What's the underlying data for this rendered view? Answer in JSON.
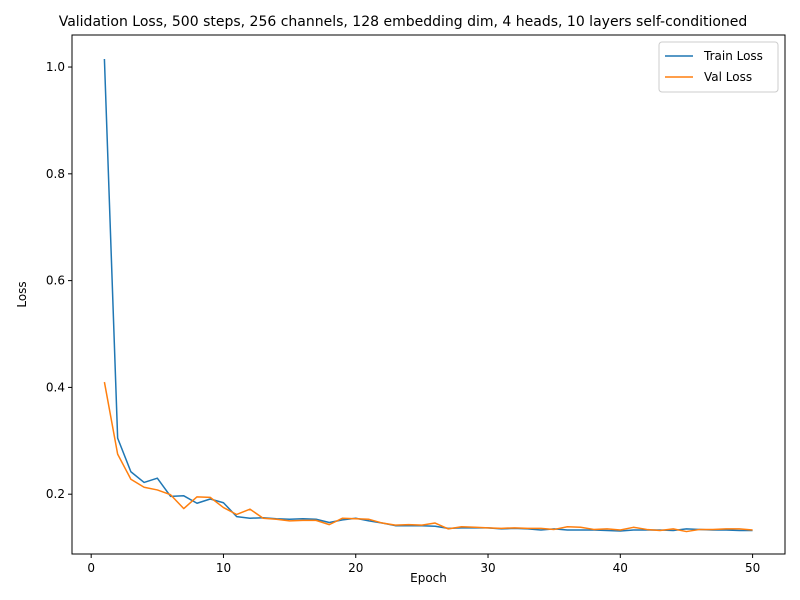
{
  "chart_data": {
    "type": "line",
    "title": "Validation Loss, 500 steps, 256 channels, 128 embedding dim, 4 heads, 10 layers self-conditioned",
    "xlabel": "Epoch",
    "ylabel": "Loss",
    "xlim": [
      -1.45,
      52.45
    ],
    "ylim": [
      0.088,
      1.06
    ],
    "xticks": [
      0,
      10,
      20,
      30,
      40,
      50
    ],
    "yticks": [
      0.2,
      0.4,
      0.6,
      0.8,
      1.0
    ],
    "xtick_labels": [
      "0",
      "10",
      "20",
      "30",
      "40",
      "50"
    ],
    "ytick_labels": [
      "0.2",
      "0.4",
      "0.6",
      "0.8",
      "1.0"
    ],
    "grid": false,
    "legend_position": "top-right",
    "x": [
      1,
      2,
      3,
      4,
      5,
      6,
      7,
      8,
      9,
      10,
      11,
      12,
      13,
      14,
      15,
      16,
      17,
      18,
      19,
      20,
      21,
      22,
      23,
      24,
      25,
      26,
      27,
      28,
      29,
      30,
      31,
      32,
      33,
      34,
      35,
      36,
      37,
      38,
      39,
      40,
      41,
      42,
      43,
      44,
      45,
      46,
      47,
      48,
      49,
      50
    ],
    "series": [
      {
        "name": "Train Loss",
        "color": "#1f77b4",
        "values": [
          1.015,
          0.305,
          0.242,
          0.222,
          0.23,
          0.196,
          0.197,
          0.183,
          0.191,
          0.184,
          0.158,
          0.155,
          0.156,
          0.154,
          0.153,
          0.154,
          0.153,
          0.147,
          0.152,
          0.155,
          0.15,
          0.146,
          0.141,
          0.141,
          0.141,
          0.14,
          0.136,
          0.137,
          0.137,
          0.137,
          0.135,
          0.136,
          0.135,
          0.133,
          0.135,
          0.133,
          0.133,
          0.133,
          0.132,
          0.131,
          0.133,
          0.133,
          0.133,
          0.132,
          0.135,
          0.134,
          0.133,
          0.133,
          0.132,
          0.132
        ]
      },
      {
        "name": "Val Loss",
        "color": "#ff7f0e",
        "values": [
          0.41,
          0.275,
          0.228,
          0.213,
          0.208,
          0.199,
          0.173,
          0.195,
          0.194,
          0.175,
          0.162,
          0.172,
          0.155,
          0.153,
          0.15,
          0.151,
          0.151,
          0.143,
          0.155,
          0.154,
          0.153,
          0.146,
          0.142,
          0.143,
          0.142,
          0.146,
          0.135,
          0.139,
          0.138,
          0.137,
          0.136,
          0.137,
          0.136,
          0.136,
          0.134,
          0.139,
          0.138,
          0.134,
          0.135,
          0.133,
          0.138,
          0.134,
          0.132,
          0.135,
          0.13,
          0.134,
          0.134,
          0.135,
          0.135,
          0.133
        ]
      }
    ]
  }
}
